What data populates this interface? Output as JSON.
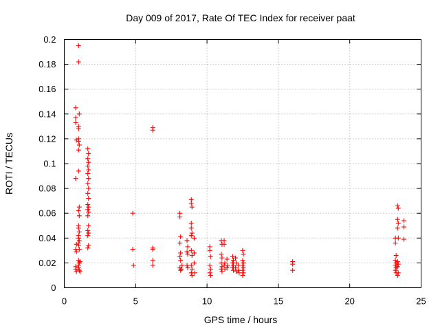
{
  "chart_data": {
    "type": "scatter",
    "title": "Day 009 of 2017, Rate Of TEC Index for receiver paat",
    "xlabel": "GPS time / hours",
    "ylabel": "ROTI / TECUs",
    "xlim": [
      0,
      25
    ],
    "ylim": [
      0,
      0.2
    ],
    "x_ticks": [
      0,
      5,
      10,
      15,
      20,
      25
    ],
    "x_tick_labels": [
      "0",
      "5",
      "10",
      "15",
      "20",
      "25"
    ],
    "y_ticks": [
      0,
      0.02,
      0.04,
      0.06,
      0.08,
      0.1,
      0.12,
      0.14,
      0.16,
      0.18,
      0.2
    ],
    "y_tick_labels": [
      "0",
      "0.02",
      "0.04",
      "0.06",
      "0.08",
      "0.1",
      "0.12",
      "0.14",
      "0.16",
      "0.18",
      "0.2"
    ],
    "grid": true,
    "marker": "+",
    "color": "#ff0000",
    "series": [
      {
        "points": [
          [
            0.8,
            0.145
          ],
          [
            0.8,
            0.137
          ],
          [
            0.8,
            0.133
          ],
          [
            0.85,
            0.119
          ],
          [
            0.8,
            0.088
          ],
          [
            0.85,
            0.035
          ],
          [
            0.8,
            0.031
          ],
          [
            0.85,
            0.029
          ],
          [
            0.8,
            0.017
          ],
          [
            0.8,
            0.015
          ],
          [
            0.85,
            0.013
          ],
          [
            1.0,
            0.195
          ],
          [
            1.0,
            0.182
          ],
          [
            1.05,
            0.14
          ],
          [
            1.0,
            0.13
          ],
          [
            1.0,
            0.128
          ],
          [
            1.0,
            0.12
          ],
          [
            1.0,
            0.118
          ],
          [
            1.05,
            0.115
          ],
          [
            1.0,
            0.111
          ],
          [
            1.0,
            0.094
          ],
          [
            1.05,
            0.065
          ],
          [
            1.0,
            0.062
          ],
          [
            1.05,
            0.058
          ],
          [
            1.0,
            0.05
          ],
          [
            1.0,
            0.048
          ],
          [
            1.05,
            0.045
          ],
          [
            1.0,
            0.042
          ],
          [
            1.0,
            0.04
          ],
          [
            1.05,
            0.038
          ],
          [
            1.0,
            0.036
          ],
          [
            1.0,
            0.034
          ],
          [
            1.05,
            0.031
          ],
          [
            1.0,
            0.022
          ],
          [
            1.05,
            0.02
          ],
          [
            1.0,
            0.018
          ],
          [
            1.0,
            0.016
          ],
          [
            1.05,
            0.014
          ],
          [
            1.1,
            0.021
          ],
          [
            1.1,
            0.013
          ],
          [
            1.65,
            0.112
          ],
          [
            1.7,
            0.108
          ],
          [
            1.65,
            0.104
          ],
          [
            1.7,
            0.101
          ],
          [
            1.65,
            0.098
          ],
          [
            1.7,
            0.095
          ],
          [
            1.65,
            0.092
          ],
          [
            1.7,
            0.088
          ],
          [
            1.65,
            0.084
          ],
          [
            1.7,
            0.08
          ],
          [
            1.65,
            0.076
          ],
          [
            1.7,
            0.072
          ],
          [
            1.65,
            0.067
          ],
          [
            1.7,
            0.065
          ],
          [
            1.65,
            0.063
          ],
          [
            1.7,
            0.061
          ],
          [
            1.65,
            0.058
          ],
          [
            1.7,
            0.05
          ],
          [
            1.65,
            0.046
          ],
          [
            1.7,
            0.044
          ],
          [
            1.65,
            0.042
          ],
          [
            1.7,
            0.034
          ],
          [
            1.65,
            0.032
          ],
          [
            4.8,
            0.06
          ],
          [
            4.8,
            0.031
          ],
          [
            4.85,
            0.018
          ],
          [
            6.2,
            0.129
          ],
          [
            6.2,
            0.127
          ],
          [
            6.2,
            0.032
          ],
          [
            6.2,
            0.031
          ],
          [
            6.2,
            0.022
          ],
          [
            6.2,
            0.018
          ],
          [
            8.1,
            0.06
          ],
          [
            8.1,
            0.057
          ],
          [
            8.15,
            0.041
          ],
          [
            8.1,
            0.036
          ],
          [
            8.15,
            0.028
          ],
          [
            8.1,
            0.025
          ],
          [
            8.15,
            0.022
          ],
          [
            8.1,
            0.016
          ],
          [
            8.15,
            0.014
          ],
          [
            8.2,
            0.015
          ],
          [
            8.25,
            0.018
          ],
          [
            8.6,
            0.038
          ],
          [
            8.65,
            0.033
          ],
          [
            8.6,
            0.029
          ],
          [
            8.65,
            0.027
          ],
          [
            8.6,
            0.018
          ],
          [
            8.65,
            0.016
          ],
          [
            8.9,
            0.071
          ],
          [
            8.9,
            0.068
          ],
          [
            8.95,
            0.065
          ],
          [
            8.9,
            0.052
          ],
          [
            8.9,
            0.048
          ],
          [
            8.95,
            0.044
          ],
          [
            8.9,
            0.042
          ],
          [
            8.9,
            0.03
          ],
          [
            8.95,
            0.026
          ],
          [
            8.9,
            0.018
          ],
          [
            8.95,
            0.015
          ],
          [
            8.9,
            0.012
          ],
          [
            8.95,
            0.01
          ],
          [
            9.1,
            0.04
          ],
          [
            9.1,
            0.028
          ],
          [
            9.1,
            0.02
          ],
          [
            9.15,
            0.012
          ],
          [
            10.2,
            0.033
          ],
          [
            10.2,
            0.03
          ],
          [
            10.25,
            0.025
          ],
          [
            10.2,
            0.018
          ],
          [
            10.25,
            0.015
          ],
          [
            10.2,
            0.012
          ],
          [
            10.25,
            0.01
          ],
          [
            11.0,
            0.038
          ],
          [
            11.05,
            0.035
          ],
          [
            11.0,
            0.027
          ],
          [
            11.05,
            0.024
          ],
          [
            11.0,
            0.02
          ],
          [
            11.05,
            0.017
          ],
          [
            11.0,
            0.015
          ],
          [
            11.05,
            0.013
          ],
          [
            11.2,
            0.038
          ],
          [
            11.2,
            0.035
          ],
          [
            11.25,
            0.02
          ],
          [
            11.2,
            0.018
          ],
          [
            11.25,
            0.015
          ],
          [
            11.4,
            0.023
          ],
          [
            11.45,
            0.018
          ],
          [
            11.4,
            0.016
          ],
          [
            11.8,
            0.025
          ],
          [
            11.85,
            0.022
          ],
          [
            11.8,
            0.02
          ],
          [
            11.85,
            0.018
          ],
          [
            11.8,
            0.016
          ],
          [
            11.85,
            0.014
          ],
          [
            12.0,
            0.024
          ],
          [
            12.05,
            0.02
          ],
          [
            12.0,
            0.016
          ],
          [
            12.05,
            0.013
          ],
          [
            12.2,
            0.018
          ],
          [
            12.2,
            0.014
          ],
          [
            12.25,
            0.012
          ],
          [
            12.5,
            0.03
          ],
          [
            12.55,
            0.027
          ],
          [
            12.5,
            0.022
          ],
          [
            12.55,
            0.02
          ],
          [
            12.5,
            0.018
          ],
          [
            12.55,
            0.016
          ],
          [
            12.5,
            0.014
          ],
          [
            12.55,
            0.012
          ],
          [
            12.5,
            0.01
          ],
          [
            16.0,
            0.021
          ],
          [
            16.0,
            0.019
          ],
          [
            16.0,
            0.014
          ],
          [
            23.2,
            0.04
          ],
          [
            23.2,
            0.036
          ],
          [
            23.25,
            0.026
          ],
          [
            23.2,
            0.022
          ],
          [
            23.25,
            0.02
          ],
          [
            23.2,
            0.018
          ],
          [
            23.25,
            0.016
          ],
          [
            23.2,
            0.014
          ],
          [
            23.25,
            0.012
          ],
          [
            23.35,
            0.066
          ],
          [
            23.4,
            0.064
          ],
          [
            23.35,
            0.055
          ],
          [
            23.4,
            0.052
          ],
          [
            23.35,
            0.048
          ],
          [
            23.4,
            0.04
          ],
          [
            23.35,
            0.021
          ],
          [
            23.4,
            0.019
          ],
          [
            23.35,
            0.017
          ],
          [
            23.4,
            0.012
          ],
          [
            23.35,
            0.01
          ],
          [
            23.8,
            0.054
          ],
          [
            23.8,
            0.049
          ],
          [
            23.8,
            0.039
          ]
        ]
      }
    ]
  }
}
